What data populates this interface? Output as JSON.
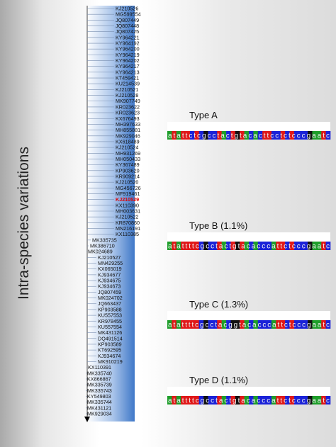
{
  "title": "Intra-species variations",
  "leaves": [
    {
      "label": "KJ210526"
    },
    {
      "label": "MG599554"
    },
    {
      "label": "JQ807449"
    },
    {
      "label": "JQ807448"
    },
    {
      "label": "JQ807425"
    },
    {
      "label": "KY964221"
    },
    {
      "label": "KY964192"
    },
    {
      "label": "KY964200"
    },
    {
      "label": "KY964219"
    },
    {
      "label": "KY964202"
    },
    {
      "label": "KY964217"
    },
    {
      "label": "KY964213"
    },
    {
      "label": "KT459421"
    },
    {
      "label": "KU214539"
    },
    {
      "label": "KJ210521"
    },
    {
      "label": "KJ210528"
    },
    {
      "label": "MK907749"
    },
    {
      "label": "KR023622"
    },
    {
      "label": "KR023623"
    },
    {
      "label": "KX676493"
    },
    {
      "label": "MH397633"
    },
    {
      "label": "MH855881"
    },
    {
      "label": "MK929046"
    },
    {
      "label": "KX618489"
    },
    {
      "label": "KJ210524"
    },
    {
      "label": "MH931269"
    },
    {
      "label": "MH050433"
    },
    {
      "label": "KY367489"
    },
    {
      "label": "KP903620"
    },
    {
      "label": "KR909214"
    },
    {
      "label": "KJ210520"
    },
    {
      "label": "MG456726"
    },
    {
      "label": "MF919461"
    },
    {
      "label": "KJ210529",
      "color": "#e00000"
    },
    {
      "label": "KX110390"
    },
    {
      "label": "MH003631"
    },
    {
      "label": "KJ210522"
    },
    {
      "label": "KR870860"
    },
    {
      "label": "MN216191"
    },
    {
      "label": "KX110385"
    },
    {
      "label": "MK335735"
    },
    {
      "label": "MK386710"
    },
    {
      "label": "MK024689"
    },
    {
      "label": "KJ210527"
    },
    {
      "label": "MN429255"
    },
    {
      "label": "KX065019"
    },
    {
      "label": "KJ934677"
    },
    {
      "label": "KJ934675"
    },
    {
      "label": "KJ934673"
    },
    {
      "label": "JQ807459"
    },
    {
      "label": "MK024702"
    },
    {
      "label": "JQ663437"
    },
    {
      "label": "KP903588"
    },
    {
      "label": "KU557553"
    },
    {
      "label": "KR978455"
    },
    {
      "label": "KU557554"
    },
    {
      "label": "MK431126"
    },
    {
      "label": "DQ491514"
    },
    {
      "label": "KP903589"
    },
    {
      "label": "KT692595"
    },
    {
      "label": "KJ934674"
    },
    {
      "label": "MK910219"
    },
    {
      "label": "KX110391"
    },
    {
      "label": "MK335740"
    },
    {
      "label": "KX866867"
    },
    {
      "label": "MK335739"
    },
    {
      "label": "MK335743"
    },
    {
      "label": "KY549803"
    },
    {
      "label": "MK335744"
    },
    {
      "label": "MK431121"
    },
    {
      "label": "MK929034"
    }
  ],
  "types": [
    {
      "label": "Type A",
      "sequence": "atattctcgcctactgtacacttcctctcccgaatc"
    },
    {
      "label": "Type B (1.1%)",
      "sequence": "atattttcgcctactgtacacccattctcccgaatc"
    },
    {
      "label": "Type C (1.3%)",
      "sequence": "atattttcgcctacggtacacccattctcccgaatc"
    },
    {
      "label": "Type D (1.1%)",
      "sequence": "atattttcgcctactgtacacccattctcccgaatc"
    }
  ]
}
